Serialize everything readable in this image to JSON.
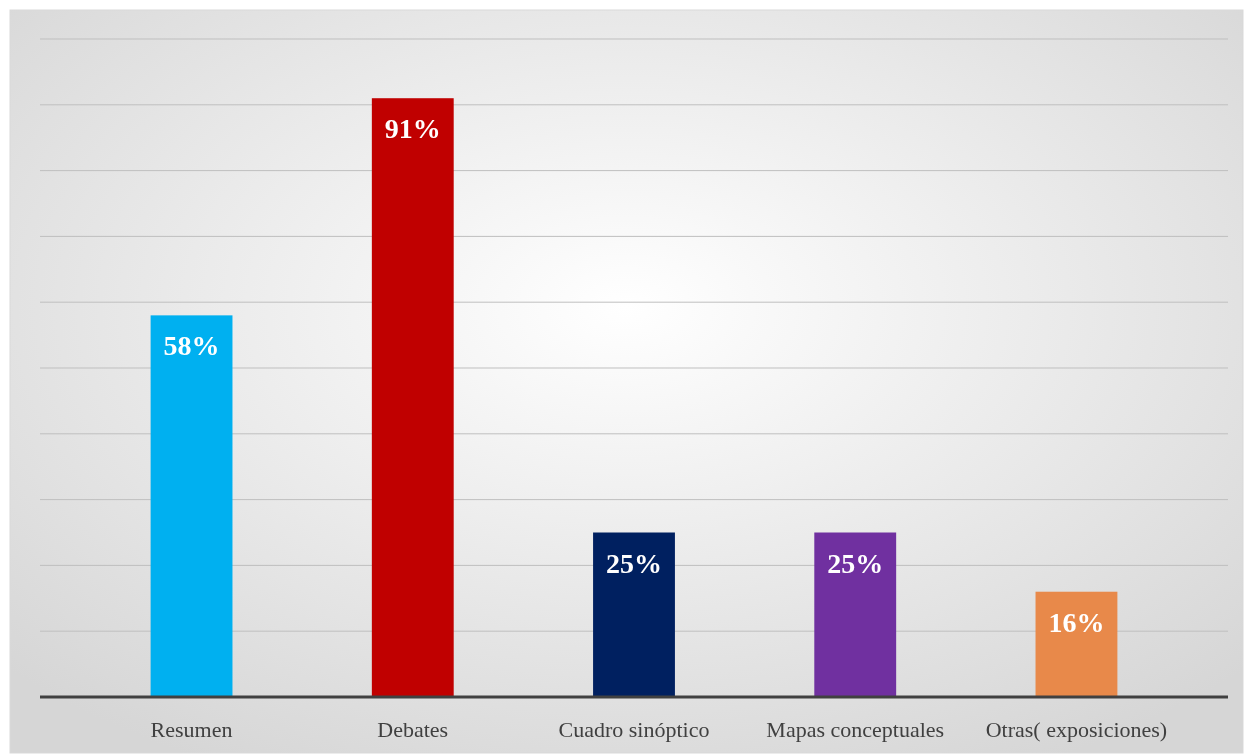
{
  "chart_data": {
    "type": "bar",
    "categories": [
      "Resumen",
      "Debates",
      "Cuadro sinóptico",
      "Mapas conceptuales",
      "Otras( exposiciones)"
    ],
    "values": [
      58,
      91,
      25,
      25,
      16
    ],
    "colors": [
      "#00b0f0",
      "#c00000",
      "#002060",
      "#7030a0",
      "#e8894a"
    ],
    "value_labels": [
      "58%",
      "91%",
      "25%",
      "25%",
      "16%"
    ],
    "ylim": [
      0,
      100
    ],
    "yticks": [
      {
        "value": 0,
        "label": null
      },
      {
        "value": 10,
        "label": null
      },
      {
        "value": 20,
        "label": null
      },
      {
        "value": 30,
        "label": null
      },
      {
        "value": 40,
        "label": null
      },
      {
        "value": 50,
        "label": null
      },
      {
        "value": 60,
        "label": null
      },
      {
        "value": 70,
        "label": null
      },
      {
        "value": 80,
        "label": null
      },
      {
        "value": 90,
        "label": null
      },
      {
        "value": 100,
        "label": null
      }
    ],
    "grid": "y",
    "tick_labels": "x"
  }
}
